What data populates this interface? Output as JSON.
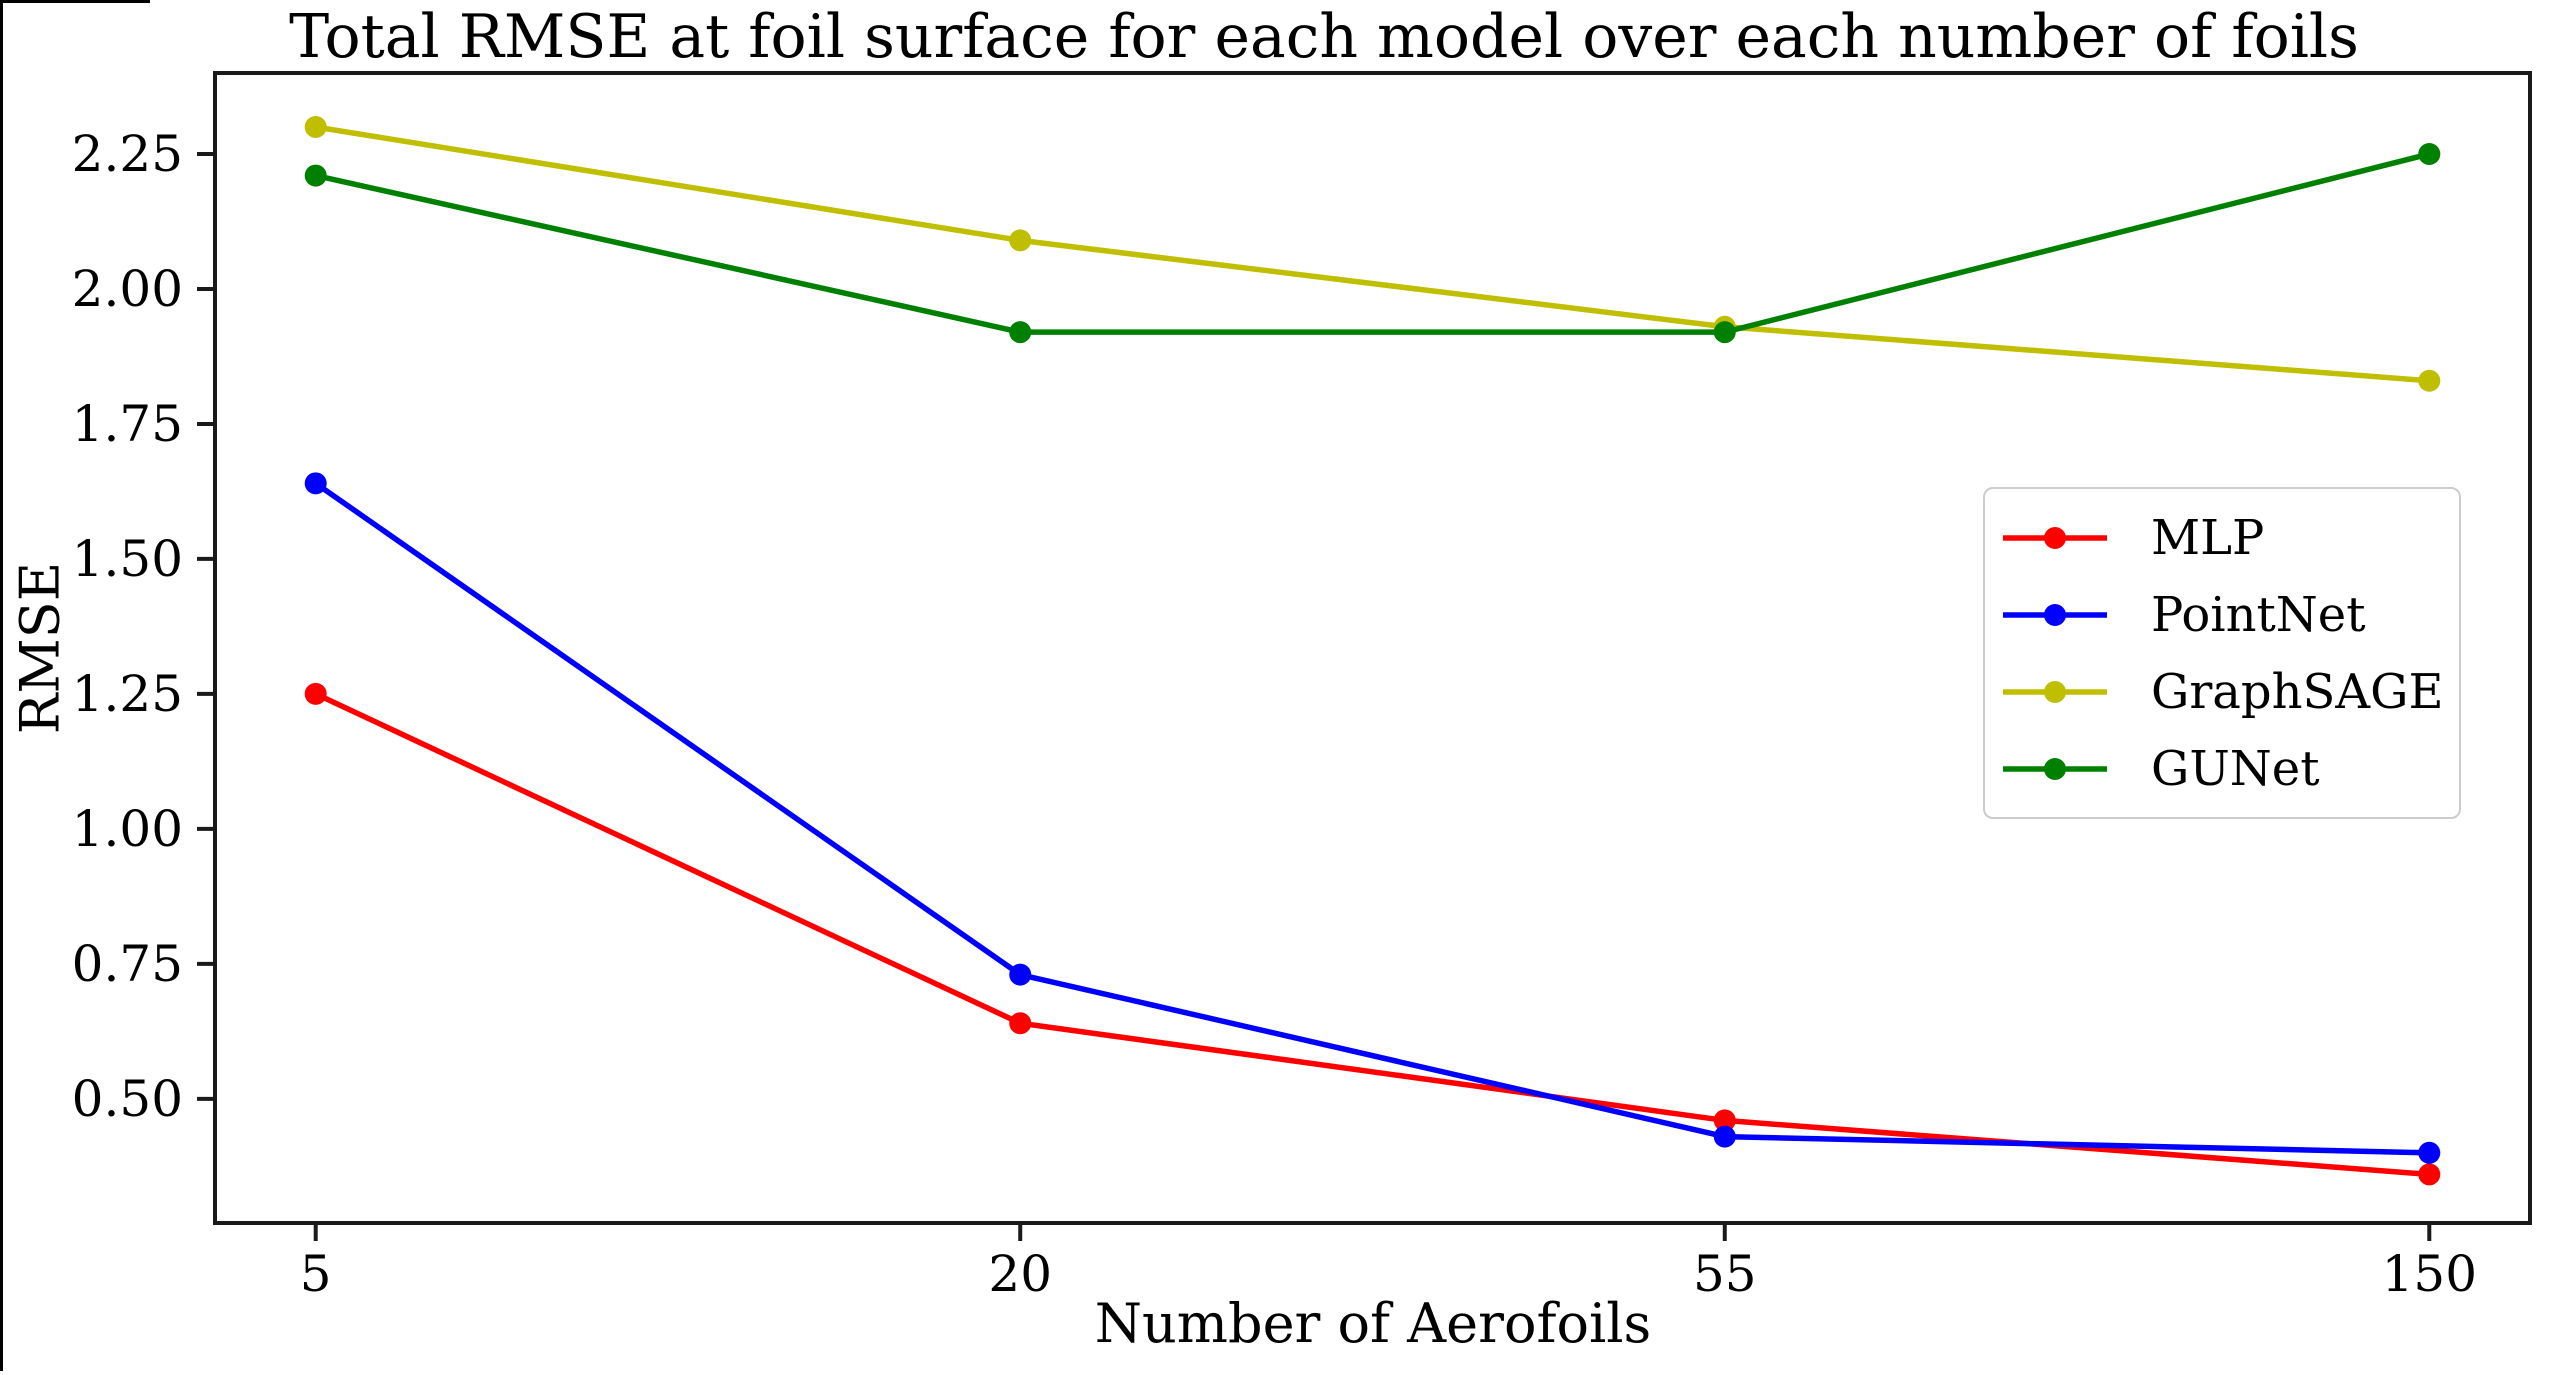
{
  "chart_data": {
    "type": "line",
    "title": "Total RMSE at foil surface for each model over each number of foils",
    "xlabel": "Number of Aerofoils",
    "ylabel": "RMSE",
    "categories": [
      "5",
      "20",
      "55",
      "150"
    ],
    "y_ticks": [
      "0.50",
      "0.75",
      "1.00",
      "1.25",
      "1.50",
      "1.75",
      "2.00",
      "2.25"
    ],
    "ylim": [
      0.27,
      2.4
    ],
    "grid": false,
    "legend_position": "center-right",
    "marker": "circle",
    "axis_color": "#1a1a1a",
    "series": [
      {
        "name": "MLP",
        "color": "#ff0000",
        "values": [
          1.25,
          0.64,
          0.46,
          0.36
        ]
      },
      {
        "name": "PointNet",
        "color": "#0000ff",
        "values": [
          1.64,
          0.73,
          0.43,
          0.4
        ]
      },
      {
        "name": "GraphSAGE",
        "color": "#bfbf00",
        "values": [
          2.3,
          2.09,
          1.93,
          1.83
        ]
      },
      {
        "name": "GUNet",
        "color": "#008000",
        "values": [
          2.21,
          1.92,
          1.92,
          2.25
        ]
      }
    ]
  }
}
